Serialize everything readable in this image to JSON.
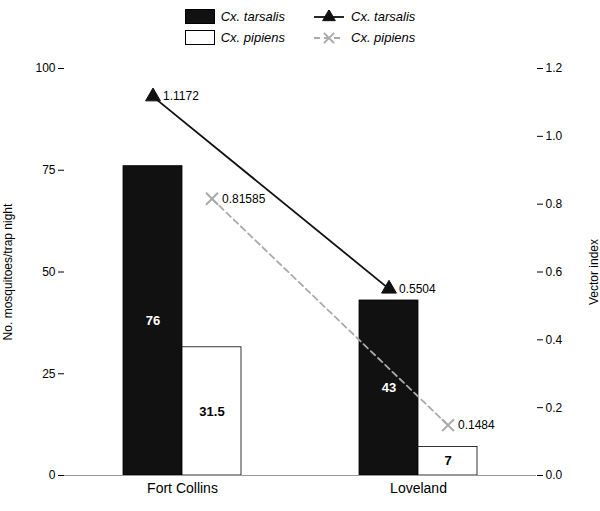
{
  "chart_data": {
    "type": "bar",
    "categories": [
      "Fort Collins",
      "Loveland"
    ],
    "series": [
      {
        "name": "Cx. tarsalis",
        "type": "bar",
        "color": "#111111",
        "values": [
          76,
          43
        ]
      },
      {
        "name": "Cx. pipiens",
        "type": "bar",
        "color": "#ffffff",
        "values": [
          31.5,
          7
        ]
      },
      {
        "name": "Cx. tarsalis",
        "type": "line",
        "axis": "y2",
        "color": "#111111",
        "marker": "triangle",
        "line_style": "solid",
        "values": [
          1.1172,
          0.5504
        ]
      },
      {
        "name": "Cx. pipiens",
        "type": "line",
        "axis": "y2",
        "color": "#aaaaaa",
        "marker": "x",
        "line_style": "dashed",
        "values": [
          0.81585,
          0.1484
        ]
      }
    ],
    "ylabel": "No. mosquitoes/trap night",
    "y2label": "Vector index",
    "ylim": [
      0,
      100
    ],
    "yticks": [
      0,
      25,
      50,
      75,
      100
    ],
    "y2lim": [
      0,
      1.2
    ],
    "y2ticks": [
      {
        "value": 0,
        "label": "0.0"
      },
      0.2,
      0.4,
      0.6,
      0.8,
      {
        "value": 1.0,
        "label": "1.0"
      },
      1.2
    ],
    "data_labels": true,
    "legend": "top"
  }
}
